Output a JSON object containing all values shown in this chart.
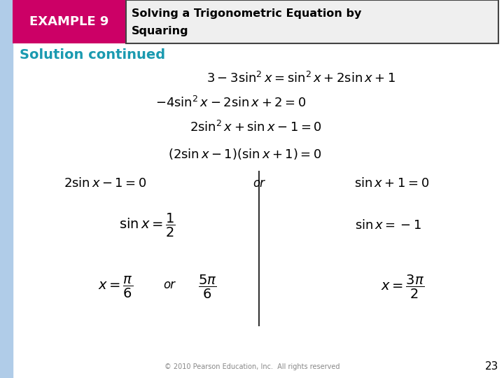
{
  "bg_color": "#ffffff",
  "left_bar_color": "#b0cce8",
  "header_box_color": "#cc0066",
  "header_box_border": "#333333",
  "header_title_color": "#ffffff",
  "header_text_color": "#000000",
  "solution_color": "#1a9ab0",
  "math_color": "#000000",
  "footer_color": "#888888",
  "page_num_color": "#000000",
  "example_label": "EXAMPLE 9",
  "header_title_line1": "Solving a Trigonometric Equation by",
  "header_title_line2": "Squaring",
  "solution_label": "Solution continued",
  "eq1": "$3-3\\sin^2 x = \\sin^2 x + 2\\sin x + 1$",
  "eq2": "$-4\\sin^2 x - 2\\sin x + 2 = 0$",
  "eq3": "$2\\sin^2 x + \\sin x - 1 = 0$",
  "eq4": "$(2\\sin x - 1)(\\sin x + 1) = 0$",
  "left_eq5": "$2\\sin x - 1 = 0$",
  "or_text": "or",
  "right_eq5": "$\\sin x + 1 = 0$",
  "left_eq6": "$\\sin x = \\dfrac{1}{2}$",
  "right_eq6": "$\\sin x = -1$",
  "left_eq7a": "$x = \\dfrac{\\pi}{6}$",
  "left_or": "or",
  "left_eq7b": "$\\dfrac{5\\pi}{6}$",
  "right_eq7": "$x = \\dfrac{3\\pi}{2}$",
  "footer_text": "© 2010 Pearson Education, Inc.  All rights reserved",
  "page_number": "23"
}
